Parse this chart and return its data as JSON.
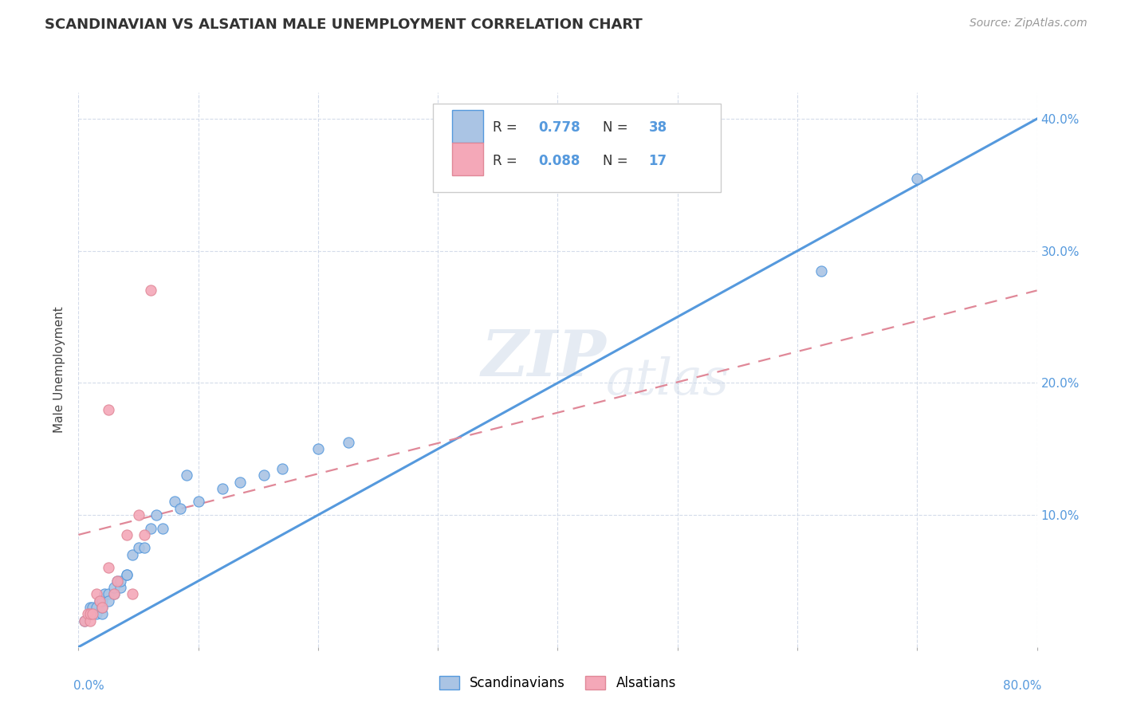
{
  "title": "SCANDINAVIAN VS ALSATIAN MALE UNEMPLOYMENT CORRELATION CHART",
  "source": "Source: ZipAtlas.com",
  "ylabel": "Male Unemployment",
  "xlim": [
    0.0,
    0.8
  ],
  "ylim": [
    0.0,
    0.42
  ],
  "yticks": [
    0.1,
    0.2,
    0.3,
    0.4
  ],
  "ytick_labels": [
    "10.0%",
    "20.0%",
    "30.0%",
    "40.0%"
  ],
  "xticks": [
    0.0,
    0.1,
    0.2,
    0.3,
    0.4,
    0.5,
    0.6,
    0.7,
    0.8
  ],
  "scandinavian_color": "#aac4e4",
  "alsatian_color": "#f4a8b8",
  "trendline_scand_color": "#5599dd",
  "trendline_als_color": "#e08898",
  "watermark_zip": "ZIP",
  "watermark_atlas": "atlas",
  "scandinavians_x": [
    0.005,
    0.01,
    0.01,
    0.012,
    0.015,
    0.015,
    0.018,
    0.02,
    0.02,
    0.02,
    0.022,
    0.025,
    0.025,
    0.03,
    0.03,
    0.032,
    0.035,
    0.035,
    0.04,
    0.04,
    0.045,
    0.05,
    0.055,
    0.06,
    0.065,
    0.07,
    0.08,
    0.085,
    0.09,
    0.1,
    0.12,
    0.135,
    0.155,
    0.17,
    0.2,
    0.225,
    0.62,
    0.7
  ],
  "scandinavians_y": [
    0.02,
    0.025,
    0.03,
    0.03,
    0.025,
    0.03,
    0.035,
    0.025,
    0.03,
    0.035,
    0.04,
    0.04,
    0.035,
    0.04,
    0.045,
    0.05,
    0.045,
    0.05,
    0.055,
    0.055,
    0.07,
    0.075,
    0.075,
    0.09,
    0.1,
    0.09,
    0.11,
    0.105,
    0.13,
    0.11,
    0.12,
    0.125,
    0.13,
    0.135,
    0.15,
    0.155,
    0.285,
    0.355
  ],
  "alsatians_x": [
    0.005,
    0.008,
    0.01,
    0.01,
    0.012,
    0.015,
    0.018,
    0.02,
    0.025,
    0.025,
    0.03,
    0.032,
    0.04,
    0.045,
    0.05,
    0.055,
    0.06
  ],
  "alsatians_y": [
    0.02,
    0.025,
    0.02,
    0.025,
    0.025,
    0.04,
    0.035,
    0.03,
    0.06,
    0.18,
    0.04,
    0.05,
    0.085,
    0.04,
    0.1,
    0.085,
    0.27
  ],
  "trendline_scand_x0": 0.0,
  "trendline_scand_y0": 0.0,
  "trendline_scand_x1": 0.8,
  "trendline_scand_y1": 0.4,
  "trendline_als_x0": 0.0,
  "trendline_als_y0": 0.085,
  "trendline_als_x1": 0.8,
  "trendline_als_y1": 0.27
}
